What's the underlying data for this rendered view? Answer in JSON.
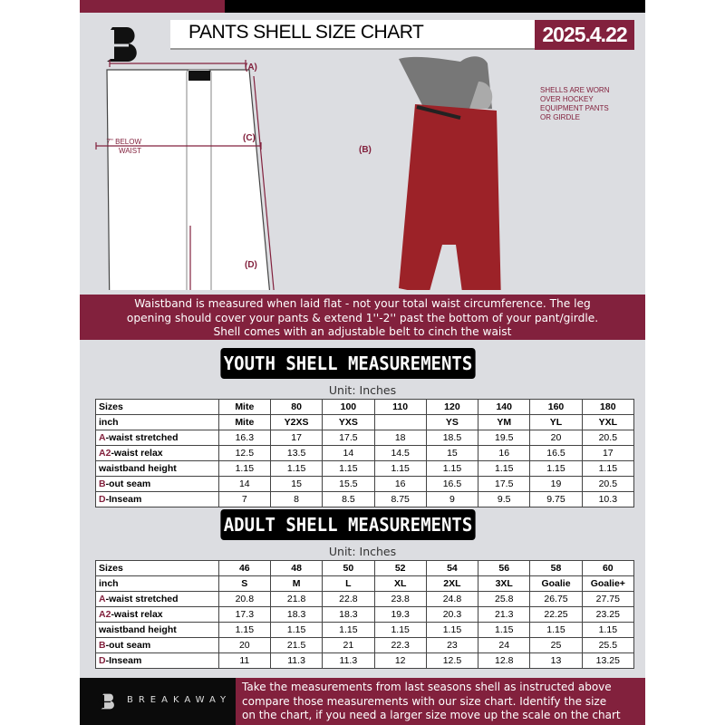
{
  "header": {
    "title": "PANTS SHELL SIZE CHART",
    "date": "2025.4.22",
    "logo_letter": "B"
  },
  "diagram": {
    "label_a": "(A)",
    "label_b": "(B)",
    "label_c": "(C)",
    "label_d": "(D)",
    "c_note_line1": "7'' BELOW",
    "c_note_line2": "WAIST",
    "photo_note": [
      "SHELLS ARE WORN",
      "OVER HOCKEY",
      "EQUIPMENT PANTS",
      "OR GIRDLE"
    ]
  },
  "banner": {
    "lines": [
      "Waistband is measured when laid flat - not your total waist circumference. The leg",
      "opening should cover your pants & extend 1''-2'' past the bottom of your pant/girdle.",
      "Shell comes with an adjustable belt to cinch the waist"
    ]
  },
  "youth": {
    "title": "YOUTH SHELL MEASUREMENTS",
    "unit": "Unit: Inches",
    "rows": [
      {
        "prefix": "",
        "label": "Sizes",
        "values": [
          "Mite",
          "80",
          "100",
          "110",
          "120",
          "140",
          "160",
          "180"
        ]
      },
      {
        "prefix": "",
        "label": "inch",
        "values": [
          "Mite",
          "Y2XS",
          "YXS",
          "",
          "YS",
          "YM",
          "YL",
          "YXL"
        ]
      },
      {
        "prefix": "A",
        "label": "-waist stretched",
        "values": [
          "16.3",
          "17",
          "17.5",
          "18",
          "18.5",
          "19.5",
          "20",
          "20.5"
        ]
      },
      {
        "prefix": "A2",
        "label": "-waist relax",
        "values": [
          "12.5",
          "13.5",
          "14",
          "14.5",
          "15",
          "16",
          "16.5",
          "17"
        ]
      },
      {
        "prefix": "",
        "label": "waistband height",
        "values": [
          "1.15",
          "1.15",
          "1.15",
          "1.15",
          "1.15",
          "1.15",
          "1.15",
          "1.15"
        ]
      },
      {
        "prefix": "B",
        "label": "-out seam",
        "values": [
          "14",
          "15",
          "15.5",
          "16",
          "16.5",
          "17.5",
          "19",
          "20.5"
        ]
      },
      {
        "prefix": "D",
        "label": "-Inseam",
        "values": [
          "7",
          "8",
          "8.5",
          "8.75",
          "9",
          "9.5",
          "9.75",
          "10.3"
        ]
      }
    ]
  },
  "adult": {
    "title": "ADULT SHELL MEASUREMENTS",
    "unit": "Unit: Inches",
    "rows": [
      {
        "prefix": "",
        "label": "Sizes",
        "values": [
          "46",
          "48",
          "50",
          "52",
          "54",
          "56",
          "58",
          "60"
        ]
      },
      {
        "prefix": "",
        "label": "inch",
        "values": [
          "S",
          "M",
          "L",
          "XL",
          "2XL",
          "3XL",
          "Goalie",
          "Goalie+"
        ]
      },
      {
        "prefix": "A",
        "label": "-waist stretched",
        "values": [
          "20.8",
          "21.8",
          "22.8",
          "23.8",
          "24.8",
          "25.8",
          "26.75",
          "27.75"
        ]
      },
      {
        "prefix": "A2",
        "label": "-waist relax",
        "values": [
          "17.3",
          "18.3",
          "18.3",
          "19.3",
          "20.3",
          "21.3",
          "22.25",
          "23.25"
        ]
      },
      {
        "prefix": "",
        "label": "waistband height",
        "values": [
          "1.15",
          "1.15",
          "1.15",
          "1.15",
          "1.15",
          "1.15",
          "1.15",
          "1.15"
        ]
      },
      {
        "prefix": "B",
        "label": "-out seam",
        "values": [
          "20",
          "21.5",
          "21",
          "22.3",
          "23",
          "24",
          "25",
          "25.5"
        ]
      },
      {
        "prefix": "D",
        "label": "-Inseam",
        "values": [
          "11",
          "11.3",
          "11.3",
          "12",
          "12.5",
          "12.8",
          "13",
          "13.25"
        ]
      }
    ]
  },
  "footer": {
    "brand": "BREAKAWAY",
    "lines": [
      "Take the measurements from last seasons shell as instructed above",
      "compare those measurements  with our size chart. Identify the size",
      "on the chart, if you need a larger size move up the scale on the chart"
    ]
  },
  "colors": {
    "brand": "#82213d",
    "background": "#dcdde1"
  }
}
